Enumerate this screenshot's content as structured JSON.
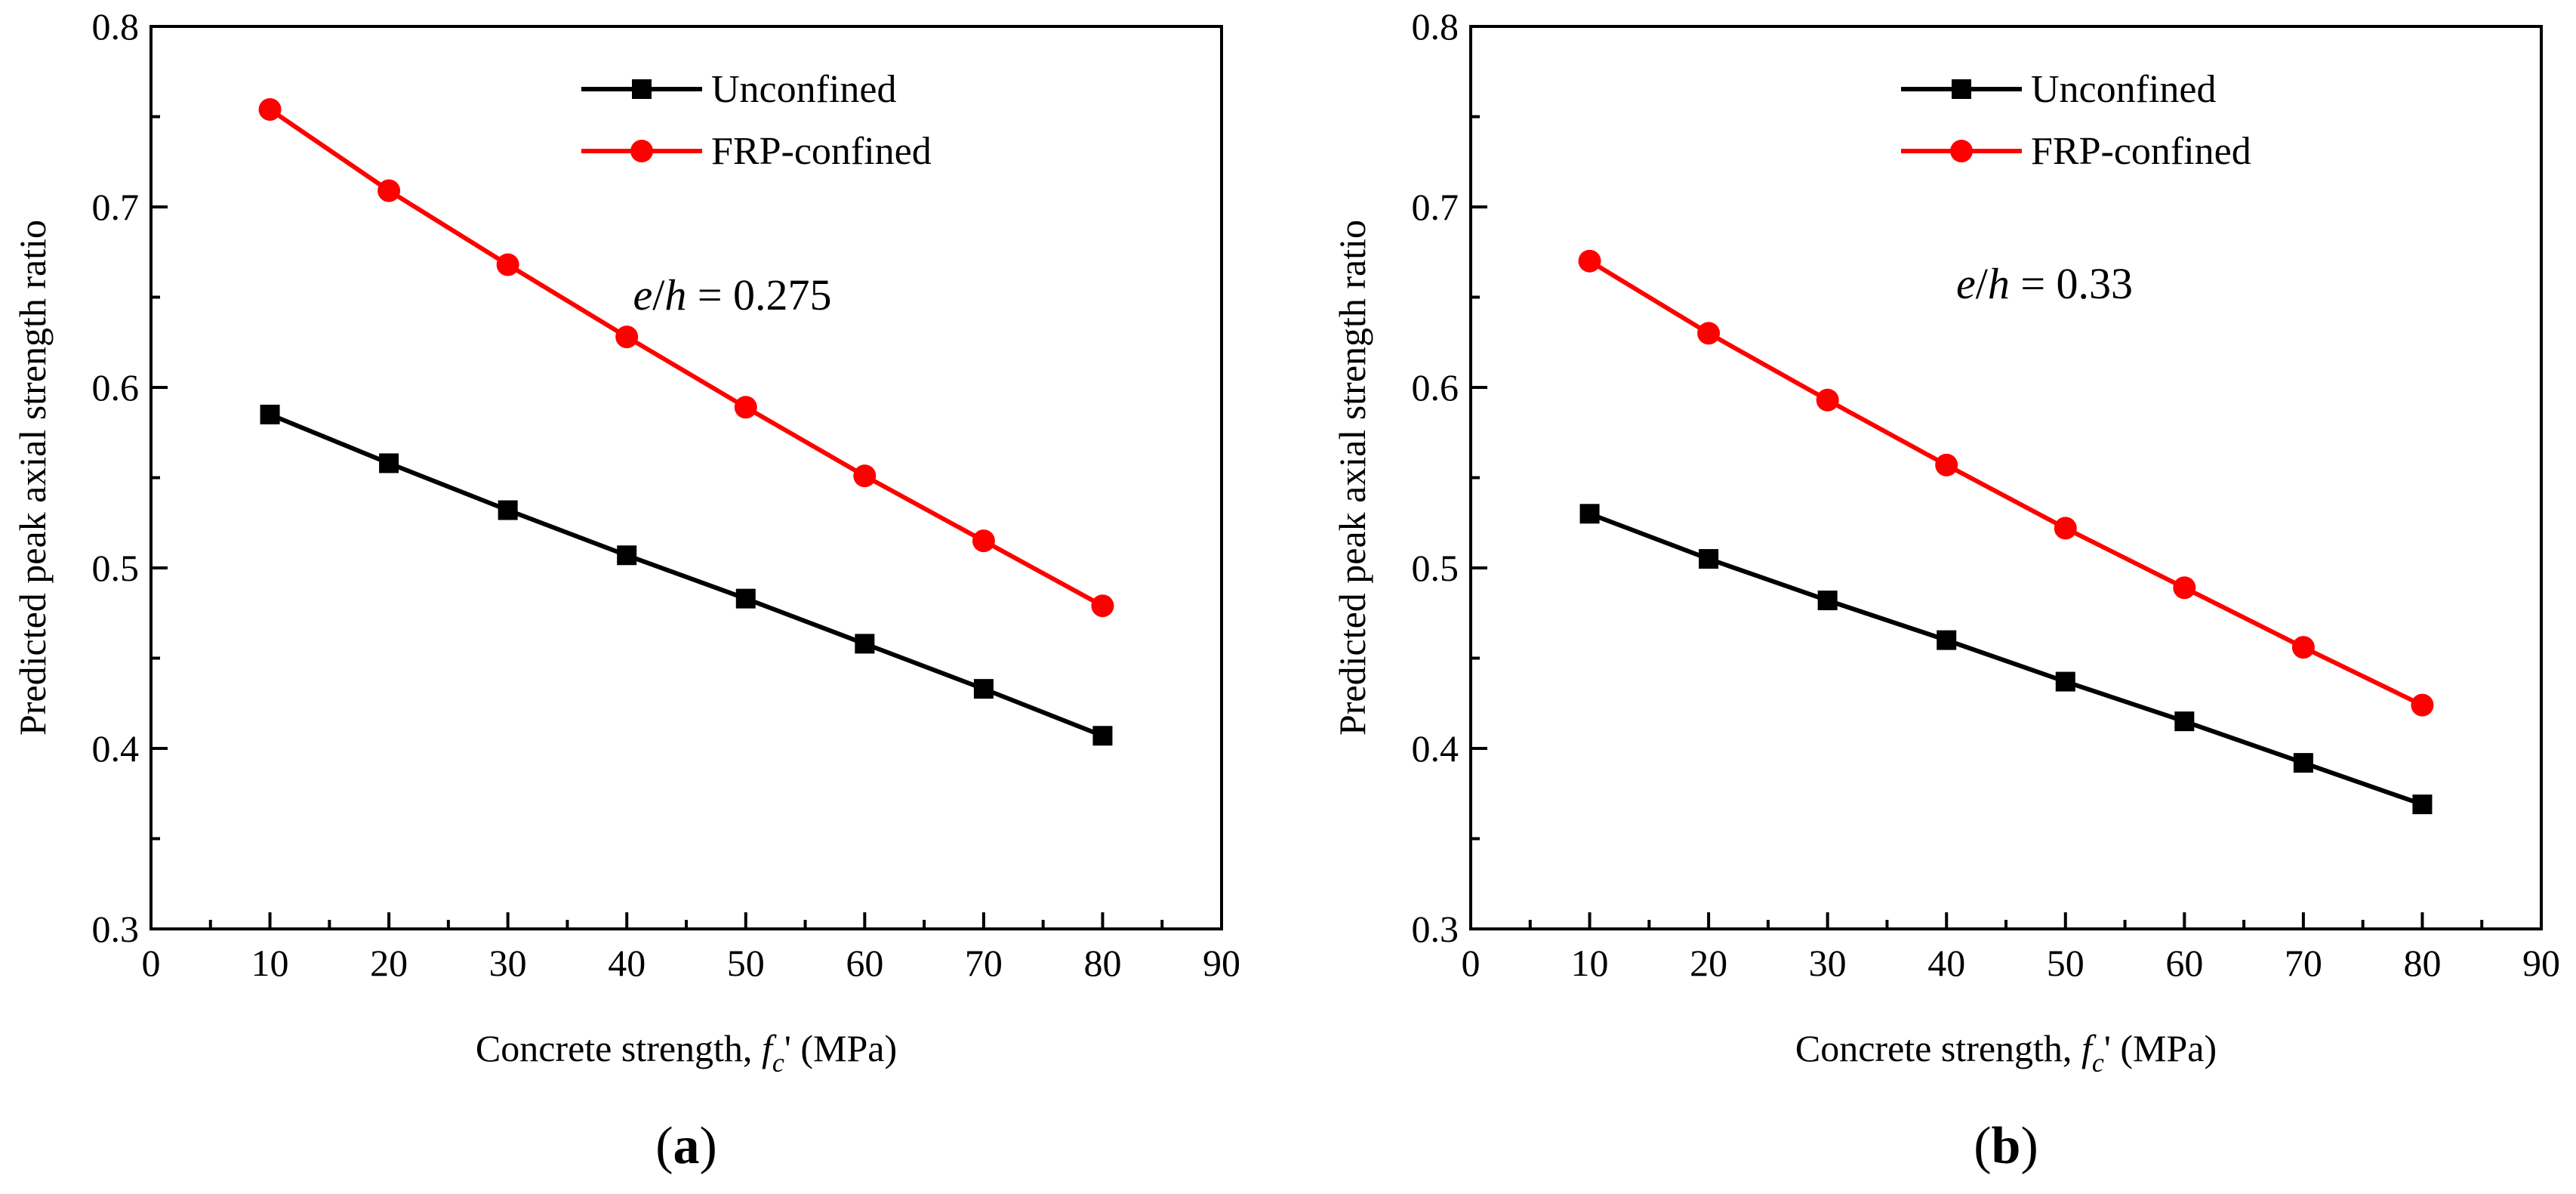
{
  "chart_data": [
    {
      "type": "line",
      "panel_label": "(a)",
      "panel_letter": "a",
      "xlabel": "Concrete strength, f_c' (MPa)",
      "ylabel": "Predicted peak axial strength ratio",
      "annotation": "e/h = 0.275",
      "annotation_value": "0.275",
      "xlim": [
        0,
        90
      ],
      "ylim": [
        0.3,
        0.8
      ],
      "xticks": [
        "0",
        "10",
        "20",
        "30",
        "40",
        "50",
        "60",
        "70",
        "80",
        "90"
      ],
      "yticks": [
        "0.3",
        "0.4",
        "0.5",
        "0.6",
        "0.7",
        "0.8"
      ],
      "x": [
        10,
        20,
        30,
        40,
        50,
        60,
        70,
        80
      ],
      "legend_position": "top-center",
      "series": [
        {
          "name": "Unconfined",
          "color": "#000000",
          "marker": "square",
          "values": [
            0.585,
            0.558,
            0.532,
            0.507,
            0.483,
            0.458,
            0.433,
            0.407
          ]
        },
        {
          "name": "FRP-confined",
          "color": "#ff0000",
          "marker": "circle",
          "values": [
            0.754,
            0.709,
            0.668,
            0.628,
            0.589,
            0.551,
            0.515,
            0.479
          ]
        }
      ]
    },
    {
      "type": "line",
      "panel_label": "(b)",
      "panel_letter": "b",
      "xlabel": "Concrete strength, f_c' (MPa)",
      "ylabel": "Predicted peak axial strength ratio",
      "annotation": "e/h = 0.33",
      "annotation_value": "0.33",
      "xlim": [
        0,
        90
      ],
      "ylim": [
        0.3,
        0.8
      ],
      "xticks": [
        "0",
        "10",
        "20",
        "30",
        "40",
        "50",
        "60",
        "70",
        "80",
        "90"
      ],
      "yticks": [
        "0.3",
        "0.4",
        "0.5",
        "0.6",
        "0.7",
        "0.8"
      ],
      "x": [
        10,
        20,
        30,
        40,
        50,
        60,
        70,
        80
      ],
      "legend_position": "top-center",
      "series": [
        {
          "name": "Unconfined",
          "color": "#000000",
          "marker": "square",
          "values": [
            0.53,
            0.505,
            0.482,
            0.46,
            0.437,
            0.415,
            0.392,
            0.369
          ]
        },
        {
          "name": "FRP-confined",
          "color": "#ff0000",
          "marker": "circle",
          "values": [
            0.67,
            0.63,
            0.593,
            0.557,
            0.522,
            0.489,
            0.456,
            0.424
          ]
        }
      ]
    }
  ]
}
